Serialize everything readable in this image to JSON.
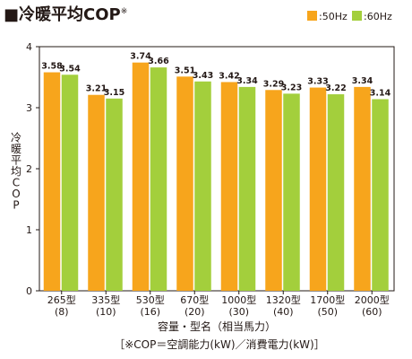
{
  "chart_data": {
    "type": "bar",
    "title": "■冷暖平均COP",
    "title_note": "※",
    "ylabel": "冷暖平均COP",
    "xlabel": "容量・型名（相当馬力）",
    "footnote": "［※COP＝空調能力(kW)／消費電力(kW)］",
    "ylim": [
      0,
      4
    ],
    "yticks": [
      "0",
      "1",
      "2",
      "3",
      "4"
    ],
    "legend_position": "top-right",
    "grid": false,
    "categories": [
      "265型",
      "335型",
      "530型",
      "670型",
      "1000型",
      "1320型",
      "1700型",
      "2000型"
    ],
    "categories_sub": [
      "(8)",
      "(10)",
      "(16)",
      "(20)",
      "(30)",
      "(40)",
      "(50)",
      "(60)"
    ],
    "series": [
      {
        "name": ":50Hz",
        "color": "#f7a51c",
        "values": [
          3.58,
          3.21,
          3.74,
          3.51,
          3.42,
          3.29,
          3.33,
          3.34
        ],
        "labels": [
          "3.58",
          "3.21",
          "3.74",
          "3.51",
          "3.42",
          "3.29",
          "3.33",
          "3.34"
        ]
      },
      {
        "name": ":60Hz",
        "color": "#a3cf3c",
        "values": [
          3.54,
          3.15,
          3.66,
          3.43,
          3.34,
          3.23,
          3.22,
          3.14
        ],
        "labels": [
          "3.54",
          "3.15",
          "3.66",
          "3.43",
          "3.34",
          "3.23",
          "3.22",
          "3.14"
        ]
      }
    ]
  }
}
